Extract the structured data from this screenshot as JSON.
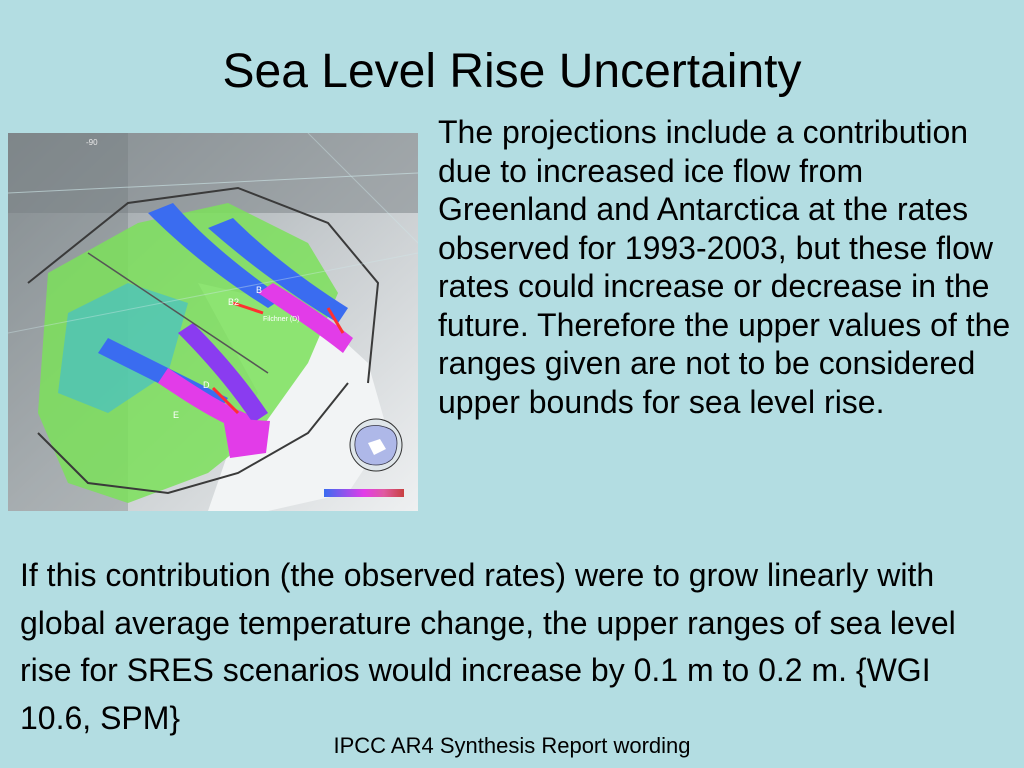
{
  "slide": {
    "title": "Sea Level Rise Uncertainty",
    "side_text": "The projections include a contribution due to increased ice flow from Greenland and Antarctica at the rates observed for 1993-2003, but these flow rates could increase or decrease in the future. Therefore the upper values of the ranges given are not to be considered upper bounds for sea level rise.",
    "body_text": "If this contribution (the observed rates) were to grow linearly with global average temperature change, the upper ranges of sea level rise for SRES scenarios would increase by 0.1 m to 0.2 m. {WGI 10.6, SPM}",
    "footer": "IPCC AR4 Synthesis Report wording"
  },
  "figure": {
    "description_icon": "antarctic-ice-velocity-map",
    "colors": {
      "background": "#b3dde2",
      "velocity_low": "#7be05a",
      "velocity_mid": "#3a6cf0",
      "velocity_high": "#e23ce8",
      "ice_shelf": "#f2f4f5"
    },
    "labels": {
      "corner_value": "-90",
      "glacier_b": "B",
      "glacier_b2": "B2",
      "glacier_d": "D",
      "glacier_e": "E",
      "inset_label": "Filchner (D)"
    }
  }
}
